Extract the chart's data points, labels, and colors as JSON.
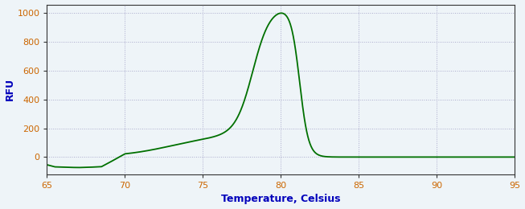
{
  "title": "",
  "xlabel": "Temperature, Celsius",
  "ylabel": "RFU",
  "xlim": [
    65,
    95
  ],
  "ylim": [
    -120,
    1060
  ],
  "yticks": [
    0,
    200,
    400,
    600,
    800,
    1000
  ],
  "xticks": [
    65,
    70,
    75,
    80,
    85,
    90,
    95
  ],
  "line_color": "#007000",
  "line_width": 1.3,
  "background_color": "#eef4f8",
  "grid_color": "#aaaacc",
  "axis_label_color": "#0000bb",
  "tick_label_color": "#cc6600",
  "spine_color": "#333333",
  "peak_temp": 79.5,
  "peak_rfu": 1000
}
